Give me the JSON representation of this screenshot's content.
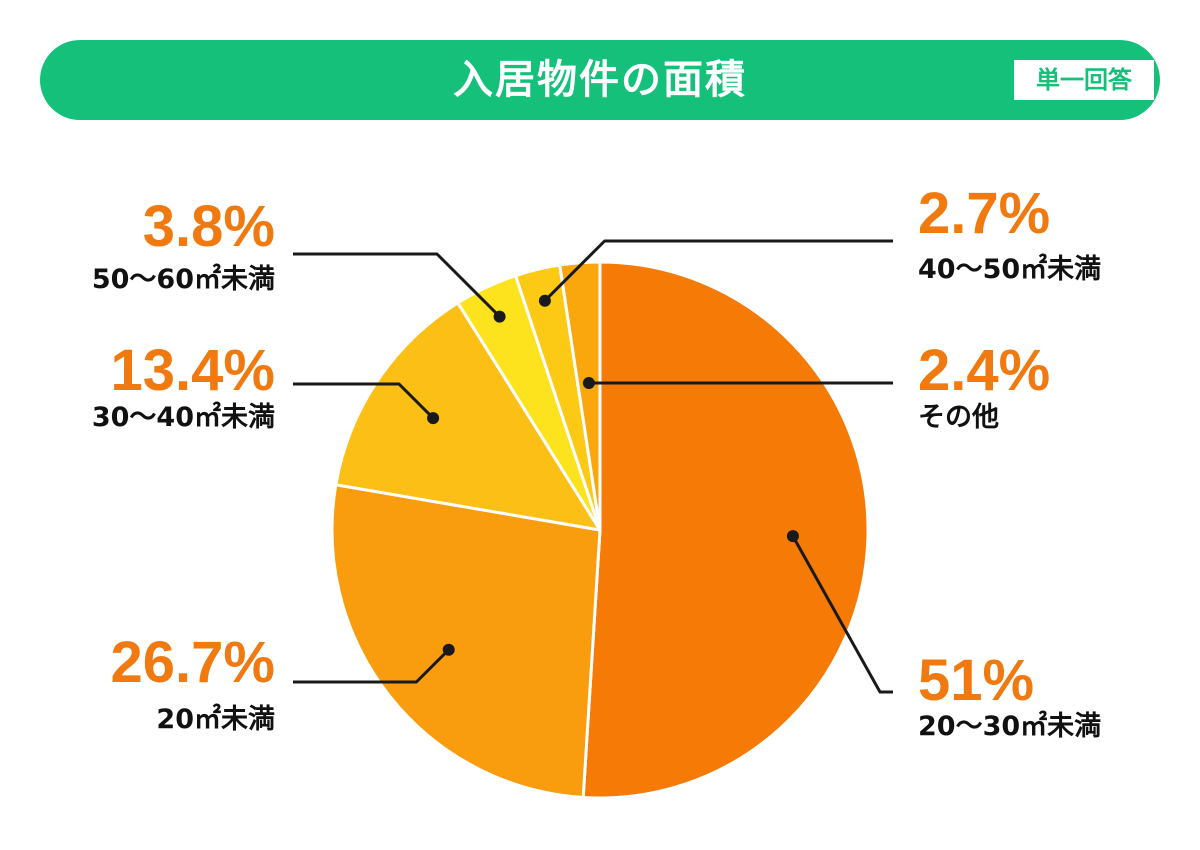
{
  "header": {
    "title": "入居物件の面積",
    "badge": "単一回答"
  },
  "colors": {
    "header_bg": "#14c07a",
    "percent_text": "#f07a10",
    "label_text": "#111111"
  },
  "chart_data": {
    "type": "pie",
    "title": "入居物件の面積",
    "start": "12 o'clock",
    "direction": "clockwise",
    "slices": [
      {
        "label": "20〜30㎡未満",
        "value": 51,
        "display": "51%",
        "color": "#f57a06"
      },
      {
        "label": "20㎡未満",
        "value": 26.7,
        "display": "26.7%",
        "color": "#f99c0e"
      },
      {
        "label": "30〜40㎡未満",
        "value": 13.4,
        "display": "13.4%",
        "color": "#fbbf16"
      },
      {
        "label": "50〜60㎡未満",
        "value": 3.8,
        "display": "3.8%",
        "color": "#fde31e"
      },
      {
        "label": "40〜50㎡未満",
        "value": 2.7,
        "display": "2.7%",
        "color": "#fcc914"
      },
      {
        "label": "その他",
        "value": 2.4,
        "display": "2.4%",
        "color": "#f9a70c"
      }
    ]
  }
}
